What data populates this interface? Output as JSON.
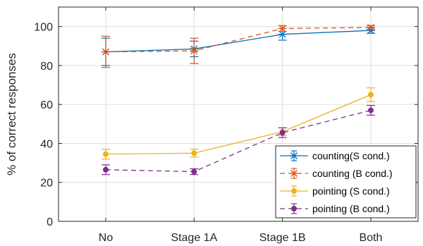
{
  "chart_data": {
    "type": "line",
    "categories": [
      "No",
      "Stage 1A",
      "Stage 1B",
      "Both"
    ],
    "xlabel": "",
    "ylabel": "% of correct responses",
    "ylim": [
      0,
      110
    ],
    "yticks": [
      0,
      20,
      40,
      60,
      80,
      100
    ],
    "grid": true,
    "legend_position": "bottom-right",
    "series": [
      {
        "name": "counting(S cond.)",
        "values": [
          87,
          88.5,
          96,
          98
        ],
        "err": [
          7,
          4,
          3,
          1.5
        ],
        "color": "#0072BD",
        "line": "solid",
        "marker": "asterisk"
      },
      {
        "name": "counting (B cond.)",
        "values": [
          87,
          87.5,
          99,
          99.5
        ],
        "err": [
          8,
          6.5,
          1.5,
          1
        ],
        "color": "#D95319",
        "line": "dashed",
        "marker": "asterisk"
      },
      {
        "name": "pointing (S cond.)",
        "values": [
          34.5,
          35,
          46,
          65
        ],
        "err": [
          2.5,
          2,
          2,
          3.5
        ],
        "color": "#EDB120",
        "line": "solid",
        "marker": "point"
      },
      {
        "name": "pointing (B cond.)",
        "values": [
          26.5,
          25.5,
          45.5,
          57
        ],
        "err": [
          2.5,
          1.5,
          2.5,
          2.5
        ],
        "color": "#7E2F8E",
        "line": "dashed",
        "marker": "point"
      }
    ]
  }
}
